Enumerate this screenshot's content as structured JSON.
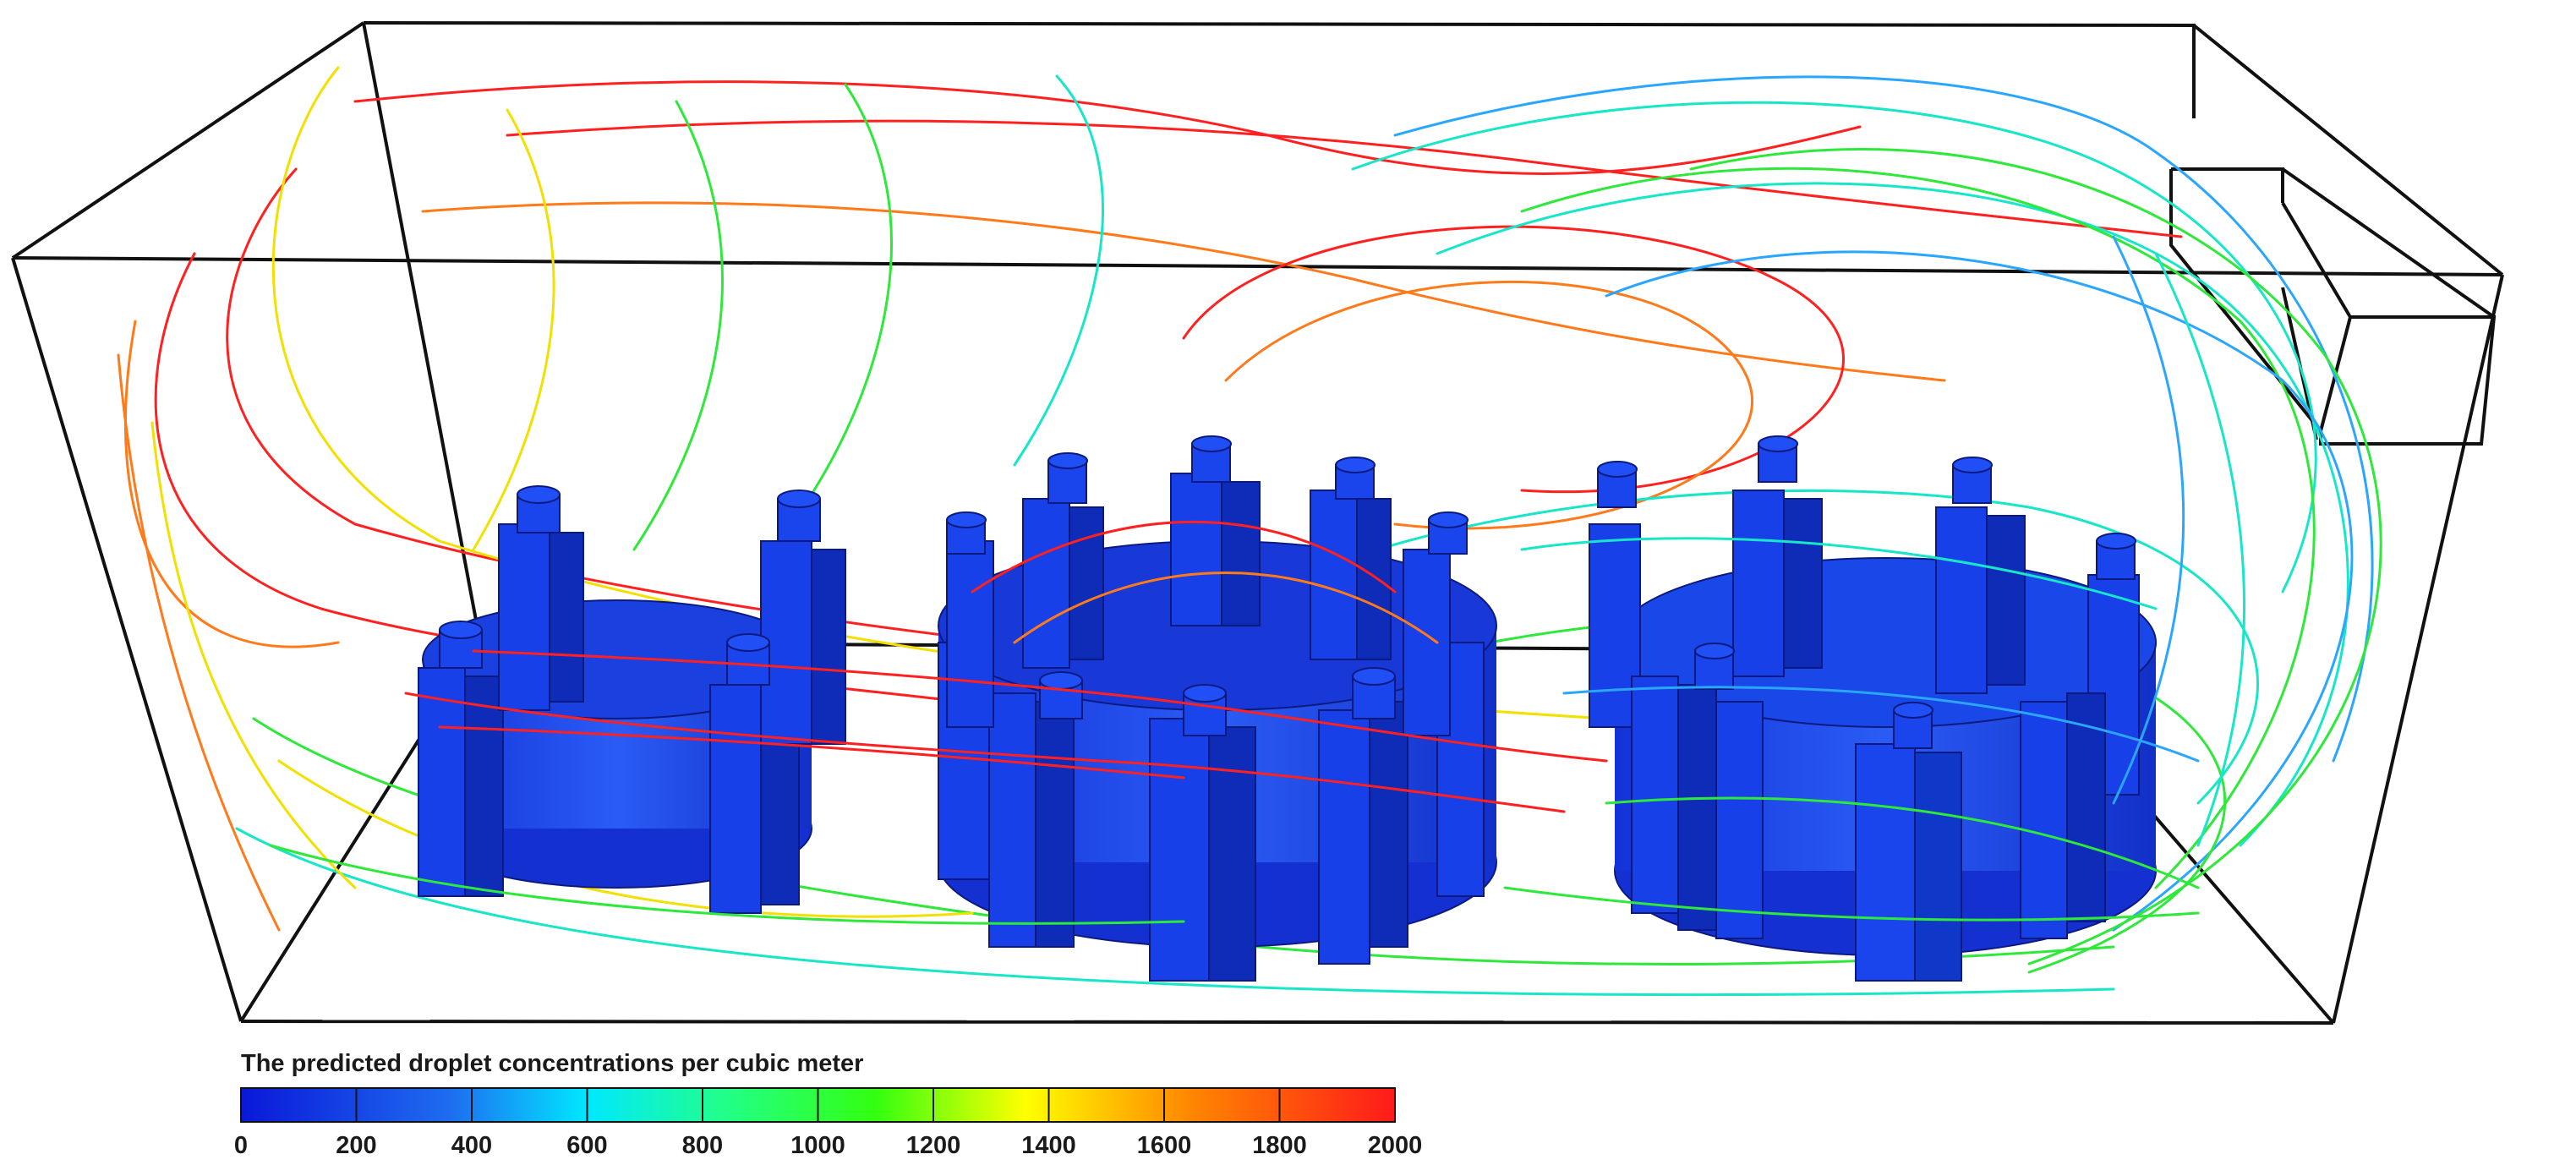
{
  "legend": {
    "title": "The predicted droplet concentrations per cubic meter",
    "range": [
      0,
      2000
    ],
    "ticks": [
      "0",
      "200",
      "400",
      "600",
      "800",
      "1000",
      "1200",
      "1400",
      "1600",
      "1800",
      "2000"
    ],
    "colors": [
      "#0a18d8",
      "#1e6cf0",
      "#00e8ff",
      "#22ff88",
      "#33ff11",
      "#ffff00",
      "#ff8800",
      "#ff1a1a"
    ]
  },
  "scene": {
    "room": "box-outline",
    "objects": [
      "cylindrical-unit-left",
      "cylindrical-unit-center",
      "cylindrical-unit-right"
    ],
    "streamline_colors": [
      "#ff2020",
      "#ff7a1a",
      "#f2e000",
      "#2ee83a",
      "#17e6c8",
      "#2aa6ff"
    ]
  }
}
